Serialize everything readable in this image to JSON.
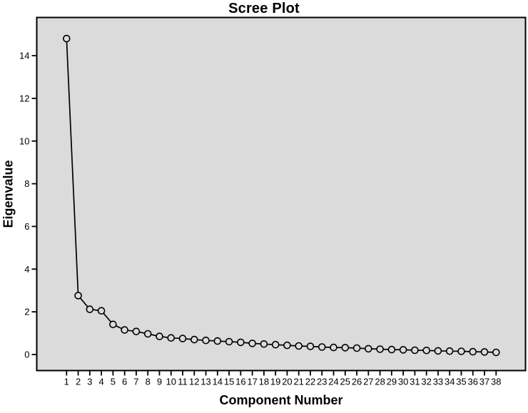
{
  "chart_data": {
    "type": "line",
    "title": "Scree Plot",
    "xlabel": "Component Number",
    "ylabel": "Eigenvalue",
    "x": [
      1,
      2,
      3,
      4,
      5,
      6,
      7,
      8,
      9,
      10,
      11,
      12,
      13,
      14,
      15,
      16,
      17,
      18,
      19,
      20,
      21,
      22,
      23,
      24,
      25,
      26,
      27,
      28,
      29,
      30,
      31,
      32,
      33,
      34,
      35,
      36,
      37,
      38
    ],
    "values": [
      14.8,
      2.76,
      2.12,
      2.05,
      1.41,
      1.15,
      1.08,
      0.97,
      0.85,
      0.78,
      0.75,
      0.7,
      0.66,
      0.63,
      0.6,
      0.57,
      0.52,
      0.49,
      0.46,
      0.43,
      0.4,
      0.38,
      0.35,
      0.33,
      0.32,
      0.3,
      0.27,
      0.25,
      0.23,
      0.22,
      0.2,
      0.19,
      0.17,
      0.16,
      0.15,
      0.13,
      0.12,
      0.1
    ],
    "yticks": [
      0,
      2,
      4,
      6,
      8,
      10,
      12,
      14
    ],
    "ylim": [
      -0.8,
      15.8
    ],
    "grid": false,
    "legend": "none",
    "marker": "open-circle",
    "line_color": "#000000",
    "marker_stroke_color": "#000000",
    "plot_background_color": "#DBDBDB",
    "frame_color": "#000000",
    "text_color": "#000000"
  }
}
